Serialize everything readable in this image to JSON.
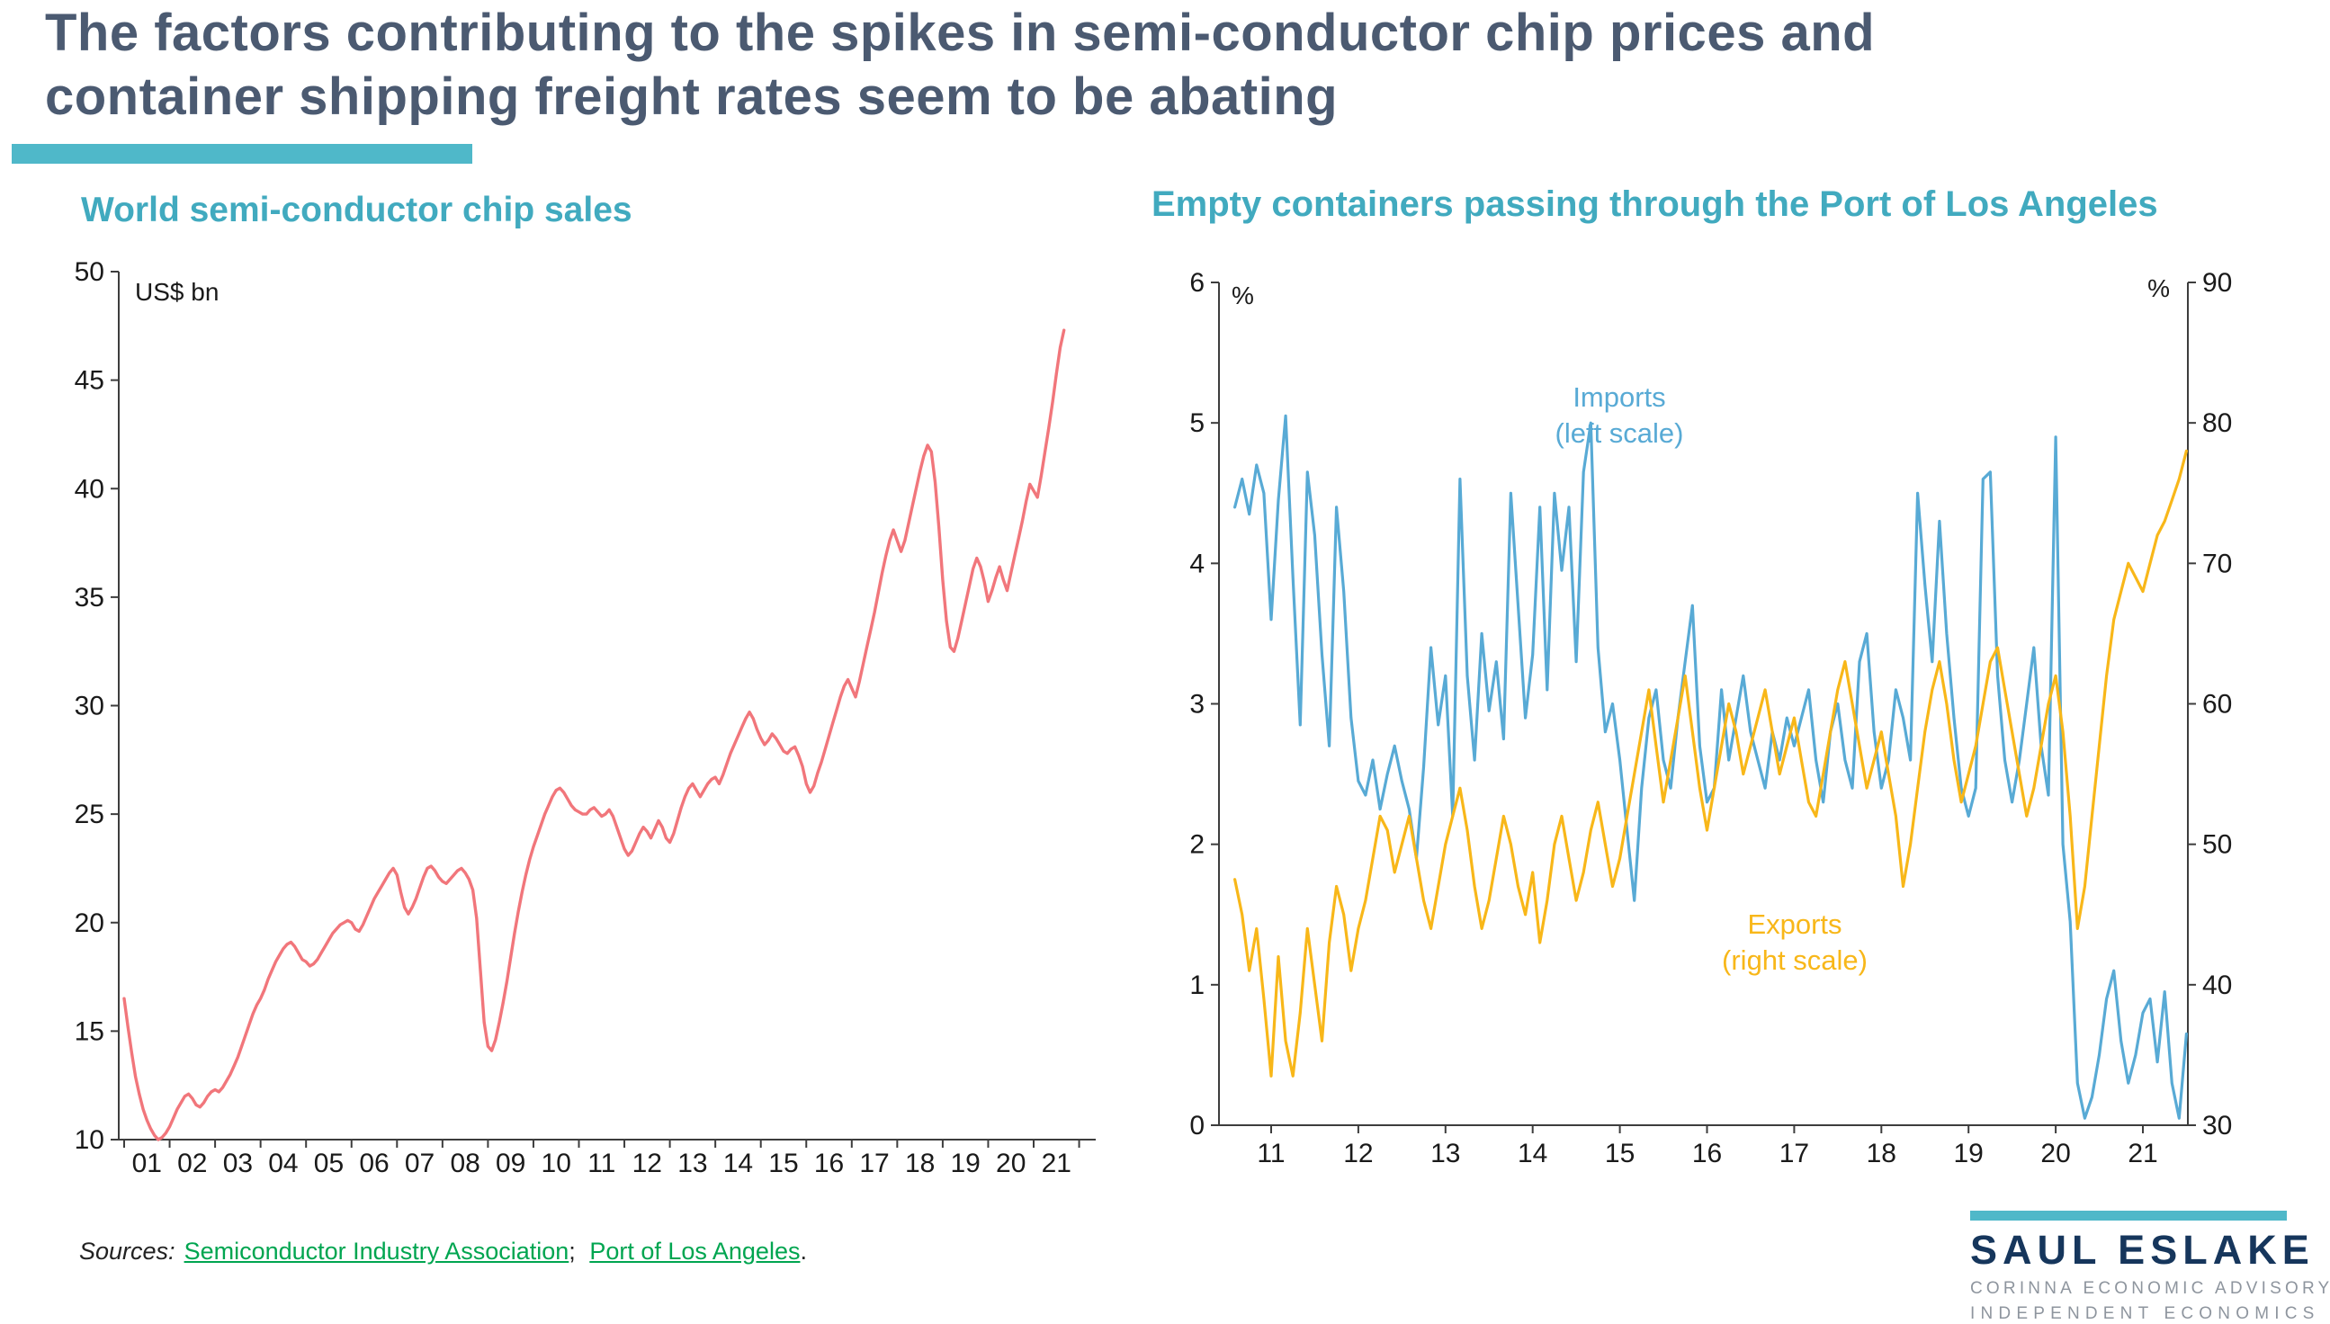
{
  "page": {
    "title_line1": "The factors contributing to the spikes in semi-conductor chip prices and",
    "title_line2": "container shipping freight rates seem to be abating"
  },
  "colors": {
    "title": "#4b5a71",
    "teal_accent": "#4fb8c9",
    "chart_title_teal": "#41aabf",
    "chip_sales_line": "#f1767b",
    "imports_line": "#58aad5",
    "exports_line": "#f8b719",
    "axis": "#3d3d3d",
    "link_green": "#00a550",
    "logo_navy": "#16365c",
    "logo_gray": "#8e959e"
  },
  "sources": {
    "label": "Sources:",
    "link1": "Semiconductor Industry Association",
    "sep": ";",
    "link2": "Port of Los Angeles",
    "end": "."
  },
  "logo": {
    "name": "SAUL ESLAKE",
    "line1": "CORINNA ECONOMIC ADVISORY",
    "line2": "INDEPENDENT ECONOMICS"
  },
  "chart_data": [
    {
      "type": "line",
      "title": "World semi-conductor chip sales",
      "unit_label": "US$ bn",
      "x_start": 2001.0,
      "x_frequency": "monthly",
      "x_tick_labels": [
        "01",
        "02",
        "03",
        "04",
        "05",
        "06",
        "07",
        "08",
        "09",
        "10",
        "11",
        "12",
        "13",
        "14",
        "15",
        "16",
        "17",
        "18",
        "19",
        "20",
        "21"
      ],
      "ylim": [
        10,
        50
      ],
      "y_ticks": [
        10,
        15,
        20,
        25,
        30,
        35,
        40,
        45,
        50
      ],
      "grid": false,
      "series": [
        {
          "name": "World semi-conductor chip sales (US$ bn, monthly)",
          "color": "#f1767b",
          "values": [
            16.5,
            15.2,
            14.0,
            12.9,
            12.1,
            11.4,
            10.9,
            10.5,
            10.2,
            10.0,
            10.1,
            10.3,
            10.6,
            11.0,
            11.4,
            11.7,
            12.0,
            12.1,
            11.9,
            11.6,
            11.5,
            11.7,
            12.0,
            12.2,
            12.3,
            12.2,
            12.4,
            12.7,
            13.0,
            13.4,
            13.8,
            14.3,
            14.8,
            15.3,
            15.8,
            16.2,
            16.5,
            16.9,
            17.4,
            17.8,
            18.2,
            18.5,
            18.8,
            19.0,
            19.1,
            18.9,
            18.6,
            18.3,
            18.2,
            18.0,
            18.1,
            18.3,
            18.6,
            18.9,
            19.2,
            19.5,
            19.7,
            19.9,
            20.0,
            20.1,
            20.0,
            19.7,
            19.6,
            19.9,
            20.3,
            20.7,
            21.1,
            21.4,
            21.7,
            22.0,
            22.3,
            22.5,
            22.2,
            21.4,
            20.7,
            20.4,
            20.7,
            21.1,
            21.6,
            22.1,
            22.5,
            22.6,
            22.4,
            22.1,
            21.9,
            21.8,
            22.0,
            22.2,
            22.4,
            22.5,
            22.3,
            22.0,
            21.5,
            20.2,
            17.8,
            15.4,
            14.3,
            14.1,
            14.6,
            15.4,
            16.3,
            17.3,
            18.4,
            19.5,
            20.5,
            21.4,
            22.2,
            22.9,
            23.5,
            24.0,
            24.5,
            25.0,
            25.4,
            25.8,
            26.1,
            26.2,
            26.0,
            25.7,
            25.4,
            25.2,
            25.1,
            25.0,
            25.0,
            25.2,
            25.3,
            25.1,
            24.9,
            25.0,
            25.2,
            24.9,
            24.4,
            23.9,
            23.4,
            23.1,
            23.3,
            23.7,
            24.1,
            24.4,
            24.2,
            23.9,
            24.3,
            24.7,
            24.4,
            23.9,
            23.7,
            24.1,
            24.7,
            25.3,
            25.8,
            26.2,
            26.4,
            26.1,
            25.8,
            26.1,
            26.4,
            26.6,
            26.7,
            26.4,
            26.8,
            27.3,
            27.8,
            28.2,
            28.6,
            29.0,
            29.4,
            29.7,
            29.4,
            28.9,
            28.5,
            28.2,
            28.4,
            28.7,
            28.5,
            28.2,
            27.9,
            27.8,
            28.0,
            28.1,
            27.7,
            27.2,
            26.4,
            26.0,
            26.3,
            26.9,
            27.4,
            28.0,
            28.6,
            29.2,
            29.8,
            30.4,
            30.9,
            31.2,
            30.8,
            30.4,
            31.1,
            31.9,
            32.7,
            33.5,
            34.3,
            35.2,
            36.1,
            36.9,
            37.6,
            38.1,
            37.6,
            37.1,
            37.6,
            38.4,
            39.2,
            40.0,
            40.8,
            41.5,
            42.0,
            41.7,
            40.3,
            38.2,
            35.8,
            33.9,
            32.7,
            32.5,
            33.1,
            33.9,
            34.7,
            35.5,
            36.3,
            36.8,
            36.4,
            35.7,
            34.8,
            35.3,
            35.9,
            36.4,
            35.8,
            35.3,
            36.1,
            36.9,
            37.7,
            38.5,
            39.4,
            40.2,
            39.9,
            39.6,
            40.6,
            41.7,
            42.8,
            44.0,
            45.3,
            46.5,
            47.3
          ]
        }
      ]
    },
    {
      "type": "line",
      "title": "Empty containers passing through the Port of Los Angeles",
      "left_unit": "%",
      "right_unit": "%",
      "x_start": 2010.583,
      "x_frequency": "monthly",
      "x_tick_labels": [
        "11",
        "12",
        "13",
        "14",
        "15",
        "16",
        "17",
        "18",
        "19",
        "20",
        "21"
      ],
      "ylim_left": [
        0,
        6
      ],
      "y_ticks_left": [
        0,
        1,
        2,
        3,
        4,
        5,
        6
      ],
      "ylim_right": [
        30,
        90
      ],
      "y_ticks_right": [
        30,
        40,
        50,
        60,
        70,
        80,
        90
      ],
      "grid": false,
      "annotations": [
        {
          "label": "Imports",
          "sublabel": "(left scale)",
          "color": "#58aad5"
        },
        {
          "label": "Exports",
          "sublabel": "(right scale)",
          "color": "#f8b719"
        }
      ],
      "series": [
        {
          "name": "Imports",
          "axis": "left",
          "color": "#58aad5",
          "values": [
            4.4,
            4.6,
            4.35,
            4.7,
            4.5,
            3.6,
            4.45,
            5.05,
            3.9,
            2.85,
            4.65,
            4.2,
            3.35,
            2.7,
            4.4,
            3.8,
            2.9,
            2.45,
            2.35,
            2.6,
            2.25,
            2.5,
            2.7,
            2.45,
            2.25,
            1.9,
            2.55,
            3.4,
            2.85,
            3.2,
            2.2,
            4.6,
            3.2,
            2.6,
            3.5,
            2.95,
            3.3,
            2.75,
            4.5,
            3.7,
            2.9,
            3.35,
            4.4,
            3.1,
            4.5,
            3.95,
            4.4,
            3.3,
            4.65,
            5.0,
            3.4,
            2.8,
            3.0,
            2.6,
            2.1,
            1.6,
            2.4,
            2.9,
            3.1,
            2.6,
            2.4,
            2.9,
            3.3,
            3.7,
            2.7,
            2.3,
            2.4,
            3.1,
            2.6,
            2.9,
            3.2,
            2.8,
            2.6,
            2.4,
            2.8,
            2.6,
            2.9,
            2.7,
            2.9,
            3.1,
            2.6,
            2.3,
            2.8,
            3.0,
            2.6,
            2.4,
            3.3,
            3.5,
            2.8,
            2.4,
            2.6,
            3.1,
            2.9,
            2.6,
            4.5,
            3.85,
            3.3,
            4.3,
            3.5,
            2.9,
            2.4,
            2.2,
            2.4,
            4.6,
            4.65,
            3.2,
            2.6,
            2.3,
            2.6,
            3.0,
            3.4,
            2.7,
            2.35,
            4.9,
            2.0,
            1.45,
            0.3,
            0.05,
            0.2,
            0.5,
            0.9,
            1.1,
            0.6,
            0.3,
            0.5,
            0.8,
            0.9,
            0.45,
            0.95,
            0.3,
            0.05,
            0.65
          ]
        },
        {
          "name": "Exports",
          "axis": "right",
          "color": "#f8b719",
          "values": [
            47.5,
            45,
            41,
            44,
            39,
            33.5,
            42,
            36,
            33.5,
            38,
            44,
            40,
            36,
            43,
            47,
            45,
            41,
            44,
            46,
            49,
            52,
            51,
            48,
            50,
            52,
            49,
            46,
            44,
            47,
            50,
            52,
            54,
            51,
            47,
            44,
            46,
            49,
            52,
            50,
            47,
            45,
            48,
            43,
            46,
            50,
            52,
            49,
            46,
            48,
            51,
            53,
            50,
            47,
            49,
            52,
            55,
            58,
            61,
            57,
            53,
            56,
            59,
            62,
            58,
            54,
            51,
            54,
            57,
            60,
            58,
            55,
            57,
            59,
            61,
            58,
            55,
            57,
            59,
            56,
            53,
            52,
            55,
            58,
            61,
            63,
            60,
            57,
            54,
            56,
            58,
            55,
            52,
            47,
            50,
            54,
            58,
            61,
            63,
            60,
            56,
            53,
            55,
            57,
            60,
            63,
            64,
            61,
            58,
            55,
            52,
            54,
            57,
            60,
            62,
            58,
            52,
            44,
            47,
            52,
            57,
            62,
            66,
            68,
            70,
            69,
            68,
            70,
            72,
            73,
            74.5,
            76,
            78
          ]
        }
      ]
    }
  ]
}
